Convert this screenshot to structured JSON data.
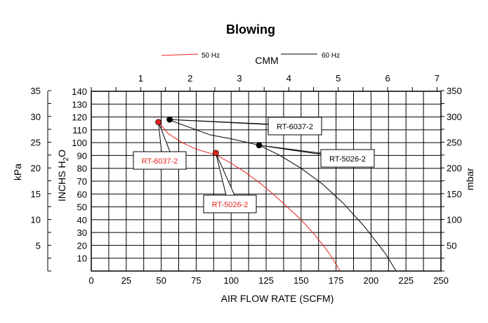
{
  "chart_data": {
    "type": "line",
    "title": "Blowing",
    "xlabel": "AIR FLOW RATE (SCFM)",
    "x2label": "CMM",
    "ylabel": "INCHS H2O",
    "y2label": "kPa",
    "y3label": "mbar",
    "xlim": [
      0,
      250
    ],
    "ylim": [
      0,
      140
    ],
    "x_ticks": [
      "0",
      "25",
      "50",
      "75",
      "100",
      "125",
      "150",
      "175",
      "200",
      "225",
      "250"
    ],
    "x2_ticks": [
      "1",
      "2",
      "3",
      "4",
      "5",
      "6",
      "7"
    ],
    "y_ticks": [
      "10",
      "20",
      "30",
      "40",
      "50",
      "60",
      "70",
      "80",
      "90",
      "100",
      "110",
      "120",
      "130",
      "140"
    ],
    "kpa_ticks": [
      "5",
      "10",
      "15",
      "20",
      "25",
      "30",
      "35"
    ],
    "mbar_ticks": [
      "50",
      "100",
      "150",
      "200",
      "250",
      "300",
      "350"
    ],
    "grid": true,
    "legend_placement": "top",
    "series": [
      {
        "name": "50 Hz",
        "color": "#e8251f",
        "x": [
          48,
          55,
          65,
          75,
          90,
          100,
          110,
          120,
          130,
          140,
          150,
          160,
          170,
          178
        ],
        "y": [
          116,
          107,
          100,
          95,
          90,
          84,
          77,
          69,
          60,
          50,
          40,
          28,
          14,
          0
        ]
      },
      {
        "name": "60 Hz",
        "color": "#000000",
        "x": [
          55,
          70,
          85,
          100,
          120,
          135,
          150,
          165,
          180,
          195,
          210,
          218
        ],
        "y": [
          118,
          112,
          106,
          103,
          98,
          90,
          80,
          68,
          53,
          35,
          14,
          0
        ]
      }
    ],
    "markers": [
      {
        "x": 48,
        "y": 116,
        "color": "#e8251f",
        "label": "RT-6037-2"
      },
      {
        "x": 89,
        "y": 92,
        "color": "#e8251f",
        "label": "RT-5026-2"
      },
      {
        "x": 56,
        "y": 118,
        "color": "#000000",
        "label": "RT-6037-2"
      },
      {
        "x": 120,
        "y": 98,
        "color": "#000000",
        "label": "RT-5026-2"
      }
    ]
  }
}
